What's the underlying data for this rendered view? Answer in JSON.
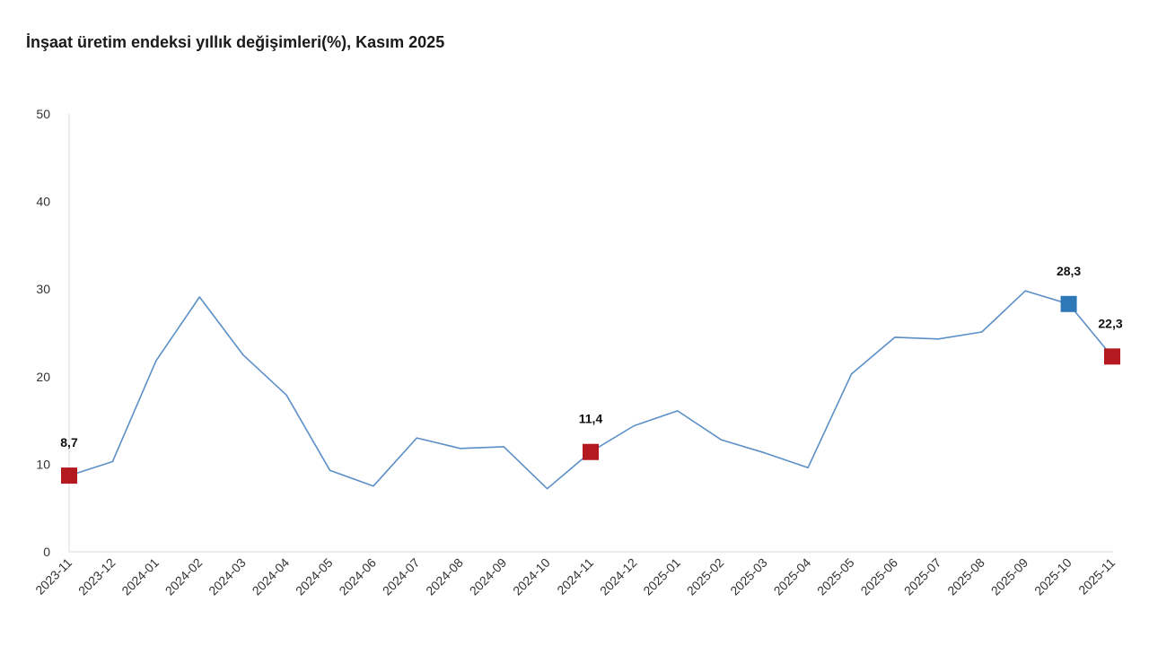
{
  "chart_data": {
    "type": "line",
    "title": "İnşaat üretim endeksi yıllık değişimleri(%), Kasım 2025",
    "xlabel": "",
    "ylabel": "",
    "ylim": [
      0,
      50
    ],
    "yticks": [
      "0",
      "10",
      "20",
      "30",
      "40",
      "50"
    ],
    "grid": false,
    "categories": [
      "2023-11",
      "2023-12",
      "2024-01",
      "2024-02",
      "2024-03",
      "2024-04",
      "2024-05",
      "2024-06",
      "2024-07",
      "2024-08",
      "2024-09",
      "2024-10",
      "2024-11",
      "2024-12",
      "2025-01",
      "2025-02",
      "2025-03",
      "2025-04",
      "2025-05",
      "2025-06",
      "2025-07",
      "2025-08",
      "2025-09",
      "2025-10",
      "2025-11"
    ],
    "series": [
      {
        "values": [
          8.7,
          10.3,
          21.8,
          29.1,
          22.5,
          17.9,
          9.3,
          7.5,
          13.0,
          11.8,
          12.0,
          7.2,
          11.4,
          14.4,
          16.1,
          12.8,
          11.3,
          9.6,
          20.3,
          24.5,
          24.3,
          25.1,
          29.8,
          28.3,
          22.3
        ],
        "color": "#5b8fc7"
      }
    ],
    "highlights": [
      {
        "index": 0,
        "label": "8,7",
        "color": "#b3191f"
      },
      {
        "index": 12,
        "label": "11,4",
        "color": "#b3191f"
      },
      {
        "index": 23,
        "label": "28,3",
        "color": "#2e78b7"
      },
      {
        "index": 24,
        "label": "22,3",
        "color": "#b3191f"
      }
    ]
  }
}
